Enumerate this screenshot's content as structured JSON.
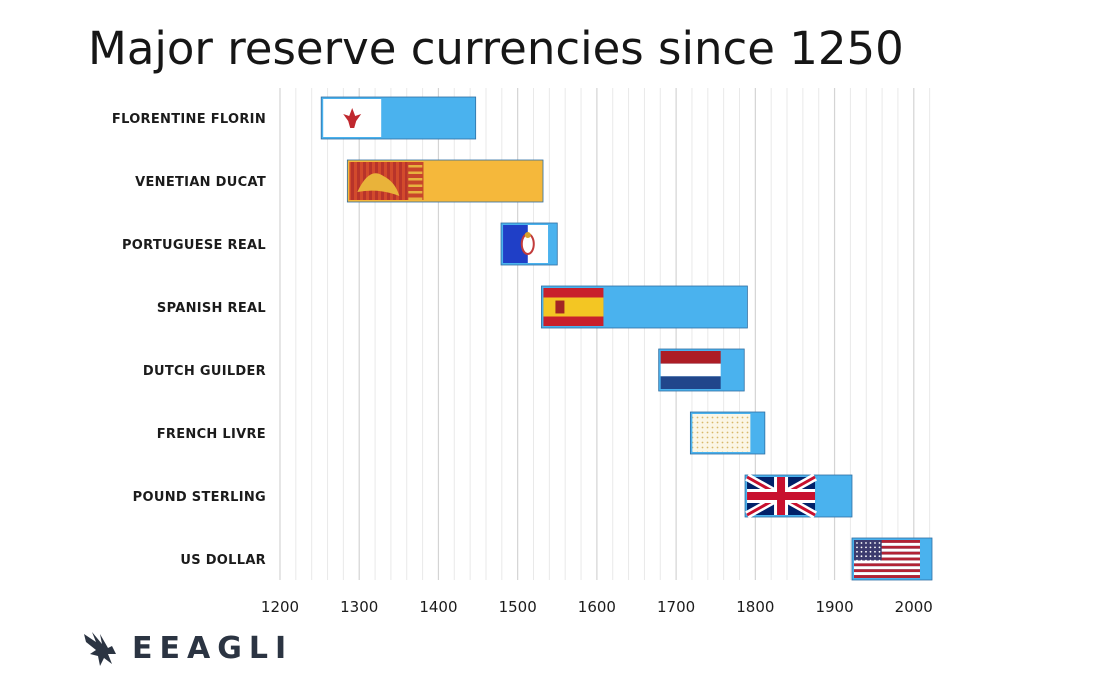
{
  "title": "Major reserve currencies since 1250",
  "brand": {
    "name": "EEAGLI",
    "logo_icon": "eagle-icon"
  },
  "colors": {
    "bar_blue": "#4ab2ee",
    "bar_gold": "#f5b83b",
    "grid": "#e0e0e0",
    "bar_outline": "#2f6fa3"
  },
  "chart_data": {
    "type": "bar",
    "orientation": "horizontal-timeline",
    "title": "Major reserve currencies since 1250",
    "xlabel": "",
    "ylabel": "",
    "xlim": [
      1200,
      2030
    ],
    "xticks": [
      1200,
      1300,
      1400,
      1500,
      1600,
      1700,
      1800,
      1900,
      2000
    ],
    "grid": true,
    "series": [
      {
        "name": "FLORENTINE FLORIN",
        "start": 1252,
        "end": 1447,
        "color": "#4ab2ee",
        "flag": "florence"
      },
      {
        "name": "VENETIAN DUCAT",
        "start": 1285,
        "end": 1532,
        "color": "#f5b83b",
        "flag": "venice"
      },
      {
        "name": "PORTUGUESE REAL",
        "start": 1479,
        "end": 1550,
        "color": "#4ab2ee",
        "flag": "portugal"
      },
      {
        "name": "SPANISH REAL",
        "start": 1530,
        "end": 1790,
        "color": "#4ab2ee",
        "flag": "spain"
      },
      {
        "name": "DUTCH GUILDER",
        "start": 1678,
        "end": 1786,
        "color": "#4ab2ee",
        "flag": "netherlands"
      },
      {
        "name": "FRENCH LIVRE",
        "start": 1718,
        "end": 1812,
        "color": "#4ab2ee",
        "flag": "france"
      },
      {
        "name": "POUND STERLING",
        "start": 1787,
        "end": 1922,
        "color": "#4ab2ee",
        "flag": "uk"
      },
      {
        "name": "US DOLLAR",
        "start": 1922,
        "end": 2023,
        "color": "#4ab2ee",
        "flag": "usa"
      }
    ]
  }
}
